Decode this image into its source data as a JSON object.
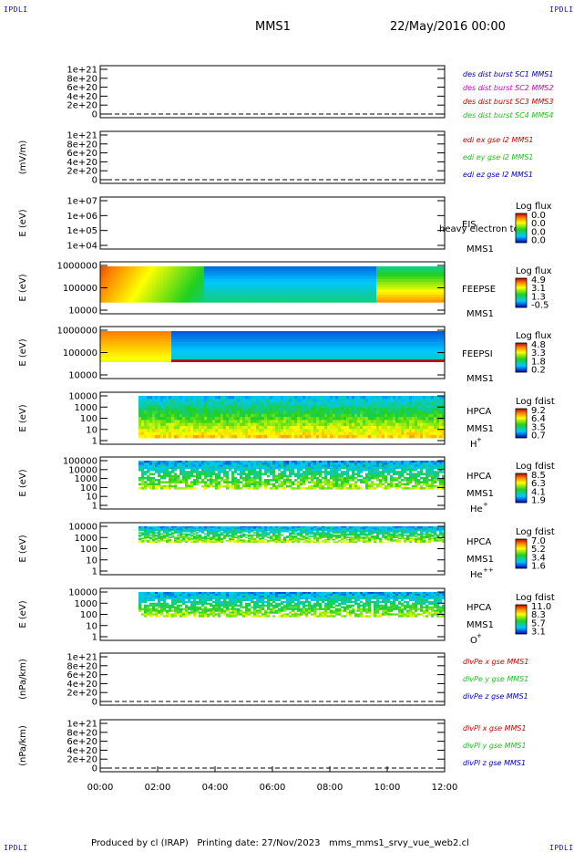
{
  "header": {
    "corner_label": "IPDLI",
    "mission": "MMS1",
    "date": "22/May/2016 00:00"
  },
  "footer": {
    "text": "Produced by cl (IRAP)   Printing date: 27/Nov/2023   mms_mms1_srvy_vue_web2.cl"
  },
  "colors": {
    "red": "#d00000",
    "magenta": "#d000d0",
    "green": "#20c020",
    "blue": "#0000c0",
    "dark_blue": "#000080"
  },
  "chart_data": [
    {
      "type": "line",
      "ylabel": "",
      "yticks": [
        "1e+21",
        "8e+20",
        "6e+20",
        "4e+20",
        "2e+20",
        "0"
      ],
      "ylim": [
        0,
        1e+21
      ],
      "legend": [
        {
          "text": "des dist burst SC1 MMS1",
          "color": "#0000c0"
        },
        {
          "text": "des dist burst SC2 MMS2",
          "color": "#d000d0"
        },
        {
          "text": "des dist burst SC3 MMS3",
          "color": "#d00000"
        },
        {
          "text": "des dist burst SC4 MMS4",
          "color": "#20c020"
        }
      ]
    },
    {
      "type": "line",
      "ylabel": "(mV/m)",
      "yticks": [
        "1e+21",
        "8e+20",
        "6e+20",
        "4e+20",
        "2e+20",
        "0"
      ],
      "ylim": [
        0,
        1e+21
      ],
      "legend": [
        {
          "text": "edi ex gse l2 MMS1",
          "color": "#d00000"
        },
        {
          "text": "edi ey gse l2 MMS1",
          "color": "#20c020"
        },
        {
          "text": "edi ez gse l2 MMS1",
          "color": "#0000c0"
        }
      ]
    },
    {
      "type": "heatmap",
      "ylabel": "E (eV)",
      "yticks": [
        "1e+07",
        "1e+06",
        "1e+05",
        "1e+04"
      ],
      "ylim": [
        10000.0,
        10000000.0
      ],
      "log": true,
      "instrument": "EIS",
      "mission": "MMS1",
      "overlay_text": "heavy electron tc",
      "cbar_title": "Log flux",
      "cbar_ticks": [
        "0.0",
        "0.0",
        "0.0",
        "0.0"
      ]
    },
    {
      "type": "heatmap",
      "ylabel": "E (eV)",
      "yticks": [
        "1000000",
        "100000",
        "10000"
      ],
      "ylim": [
        10000.0,
        1000000.0
      ],
      "log": true,
      "instrument": "FEEPSE",
      "mission": "MMS1",
      "cbar_title": "Log flux",
      "cbar_ticks": [
        "4.9",
        "3.1",
        "1.3",
        "-0.5"
      ]
    },
    {
      "type": "heatmap",
      "ylabel": "E (eV)",
      "yticks": [
        "1000000",
        "100000",
        "10000"
      ],
      "ylim": [
        10000.0,
        1000000.0
      ],
      "log": true,
      "instrument": "FEEPSI",
      "mission": "MMS1",
      "cbar_title": "Log flux",
      "cbar_ticks": [
        "4.8",
        "3.3",
        "1.8",
        "0.2"
      ]
    },
    {
      "type": "heatmap",
      "ylabel": "E (eV)",
      "yticks": [
        "10000",
        "1000",
        "100",
        "10",
        "1"
      ],
      "ylim": [
        1,
        30000
      ],
      "log": true,
      "instrument": "HPCA",
      "mission": "MMS1",
      "species": "H",
      "species_sup": "+",
      "cbar_title": "Log fdist",
      "cbar_ticks": [
        "9.2",
        "6.4",
        "3.5",
        "0.7"
      ]
    },
    {
      "type": "heatmap",
      "ylabel": "E (eV)",
      "yticks": [
        "100000",
        "10000",
        "1000",
        "100",
        "10",
        "1"
      ],
      "ylim": [
        1,
        100000
      ],
      "log": true,
      "instrument": "HPCA",
      "mission": "MMS1",
      "species": "He",
      "species_sup": "+",
      "cbar_title": "Log fdist",
      "cbar_ticks": [
        "8.5",
        "6.3",
        "4.1",
        "1.9"
      ]
    },
    {
      "type": "heatmap",
      "ylabel": "E (eV)",
      "yticks": [
        "10000",
        "1000",
        "100",
        "10",
        "1"
      ],
      "ylim": [
        1,
        30000
      ],
      "log": true,
      "instrument": "HPCA",
      "mission": "MMS1",
      "species": "He",
      "species_sup": "++",
      "cbar_title": "Log fdist",
      "cbar_ticks": [
        "7.0",
        "5.2",
        "3.4",
        "1.6"
      ]
    },
    {
      "type": "heatmap",
      "ylabel": "E (eV)",
      "yticks": [
        "10000",
        "1000",
        "100",
        "10",
        "1"
      ],
      "ylim": [
        1,
        30000
      ],
      "log": true,
      "instrument": "HPCA",
      "mission": "MMS1",
      "species": "O",
      "species_sup": "+",
      "cbar_title": "Log fdist",
      "cbar_ticks": [
        "11.0",
        "8.3",
        "5.7",
        "3.1"
      ]
    },
    {
      "type": "line",
      "ylabel": "(nPa/km)",
      "yticks": [
        "1e+21",
        "8e+20",
        "6e+20",
        "4e+20",
        "2e+20",
        "0"
      ],
      "ylim": [
        0,
        1e+21
      ],
      "legend": [
        {
          "text": "divPe x gse MMS1",
          "color": "#d00000"
        },
        {
          "text": "divPe y gse MMS1",
          "color": "#20c020"
        },
        {
          "text": "divPe z gse MMS1",
          "color": "#0000c0"
        }
      ]
    },
    {
      "type": "line",
      "ylabel": "(nPa/km)",
      "yticks": [
        "1e+21",
        "8e+20",
        "6e+20",
        "4e+20",
        "2e+20",
        "0"
      ],
      "ylim": [
        0,
        1e+21
      ],
      "legend": [
        {
          "text": "divPi x gse MMS1",
          "color": "#d00000"
        },
        {
          "text": "divPi y gse MMS1",
          "color": "#20c020"
        },
        {
          "text": "divPi z gse MMS1",
          "color": "#0000c0"
        }
      ],
      "xticks": [
        "00:00",
        "02:00",
        "04:00",
        "06:00",
        "08:00",
        "10:00",
        "12:00"
      ]
    }
  ]
}
